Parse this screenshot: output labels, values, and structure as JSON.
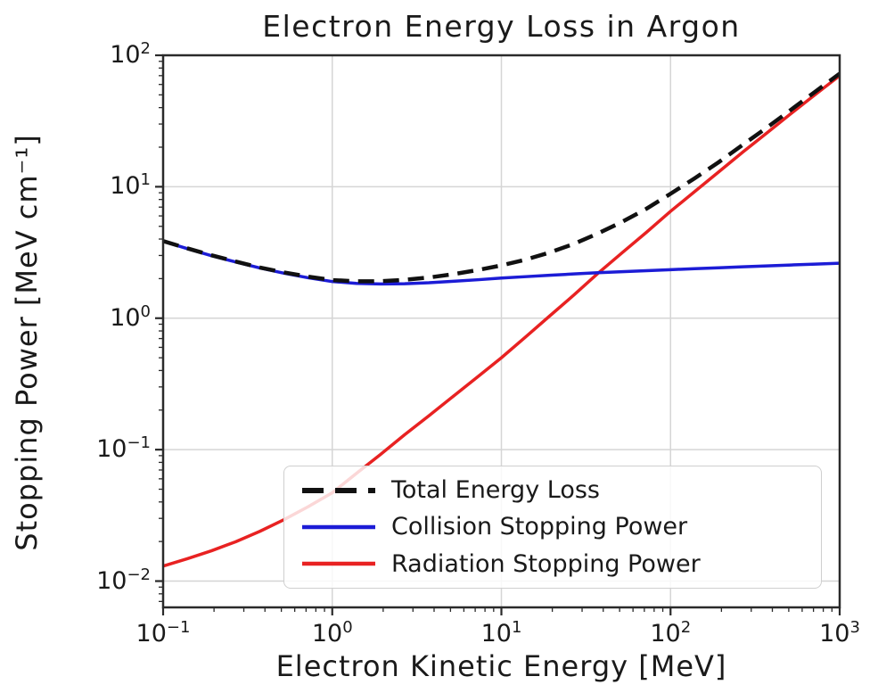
{
  "chart_data": {
    "type": "line",
    "title": "Electron Energy Loss in Argon",
    "xlabel": "Electron Kinetic Energy [MeV]",
    "ylabel": "Stopping Power [MeV cm⁻¹]",
    "xscale": "log",
    "yscale": "log",
    "xlim": [
      0.1,
      1000
    ],
    "ylim": [
      0.0063,
      100
    ],
    "grid": true,
    "legend_position": "lower center inside plot",
    "x_ticks": [
      {
        "log": -1,
        "exp": "−1"
      },
      {
        "log": 0,
        "exp": "0"
      },
      {
        "log": 1,
        "exp": "1"
      },
      {
        "log": 2,
        "exp": "2"
      },
      {
        "log": 3,
        "exp": "3"
      }
    ],
    "y_ticks": [
      {
        "log": 2,
        "exp": "2"
      },
      {
        "log": 1,
        "exp": "1"
      },
      {
        "log": 0,
        "exp": "0"
      },
      {
        "log": -1,
        "exp": "−1"
      },
      {
        "log": -2,
        "exp": "−2"
      }
    ],
    "x": [
      0.1,
      0.139,
      0.193,
      0.268,
      0.373,
      0.518,
      0.72,
      1.0,
      1.39,
      1.93,
      2.68,
      3.73,
      5.18,
      7.2,
      10,
      13.9,
      19.3,
      26.8,
      37.3,
      51.8,
      72,
      100,
      139,
      193,
      268,
      373,
      518,
      720,
      1000
    ],
    "series": [
      {
        "name": "Total Energy Loss",
        "color": "#111111",
        "dashed": true,
        "width": 4.5,
        "values": [
          3.86,
          3.4,
          3.01,
          2.7,
          2.43,
          2.23,
          2.07,
          1.95,
          1.91,
          1.91,
          1.96,
          2.04,
          2.16,
          2.32,
          2.52,
          2.79,
          3.16,
          3.67,
          4.42,
          5.41,
          6.8,
          8.84,
          11.6,
          15.4,
          20.9,
          28.3,
          38.7,
          53.1,
          72.6
        ]
      },
      {
        "name": "Collision Stopping Power",
        "color": "#1c1cd6",
        "dashed": false,
        "width": 3.5,
        "values": [
          3.85,
          3.38,
          2.99,
          2.68,
          2.41,
          2.2,
          2.03,
          1.9,
          1.84,
          1.82,
          1.83,
          1.86,
          1.91,
          1.96,
          2.02,
          2.07,
          2.12,
          2.17,
          2.22,
          2.26,
          2.3,
          2.34,
          2.38,
          2.42,
          2.46,
          2.5,
          2.54,
          2.58,
          2.62
        ]
      },
      {
        "name": "Radiation Stopping Power",
        "color": "#e82222",
        "dashed": false,
        "width": 3.5,
        "values": [
          0.013,
          0.0148,
          0.017,
          0.0199,
          0.0239,
          0.0293,
          0.0368,
          0.047,
          0.066,
          0.092,
          0.13,
          0.181,
          0.254,
          0.356,
          0.5,
          0.72,
          1.04,
          1.5,
          2.2,
          3.15,
          4.5,
          6.5,
          9.2,
          13.0,
          18.4,
          25.8,
          36.2,
          50.5,
          70.0
        ]
      }
    ],
    "colors": {
      "grid": "#d5d5d5",
      "axis": "#2a2a2a",
      "text": "#1a1a1a"
    }
  }
}
